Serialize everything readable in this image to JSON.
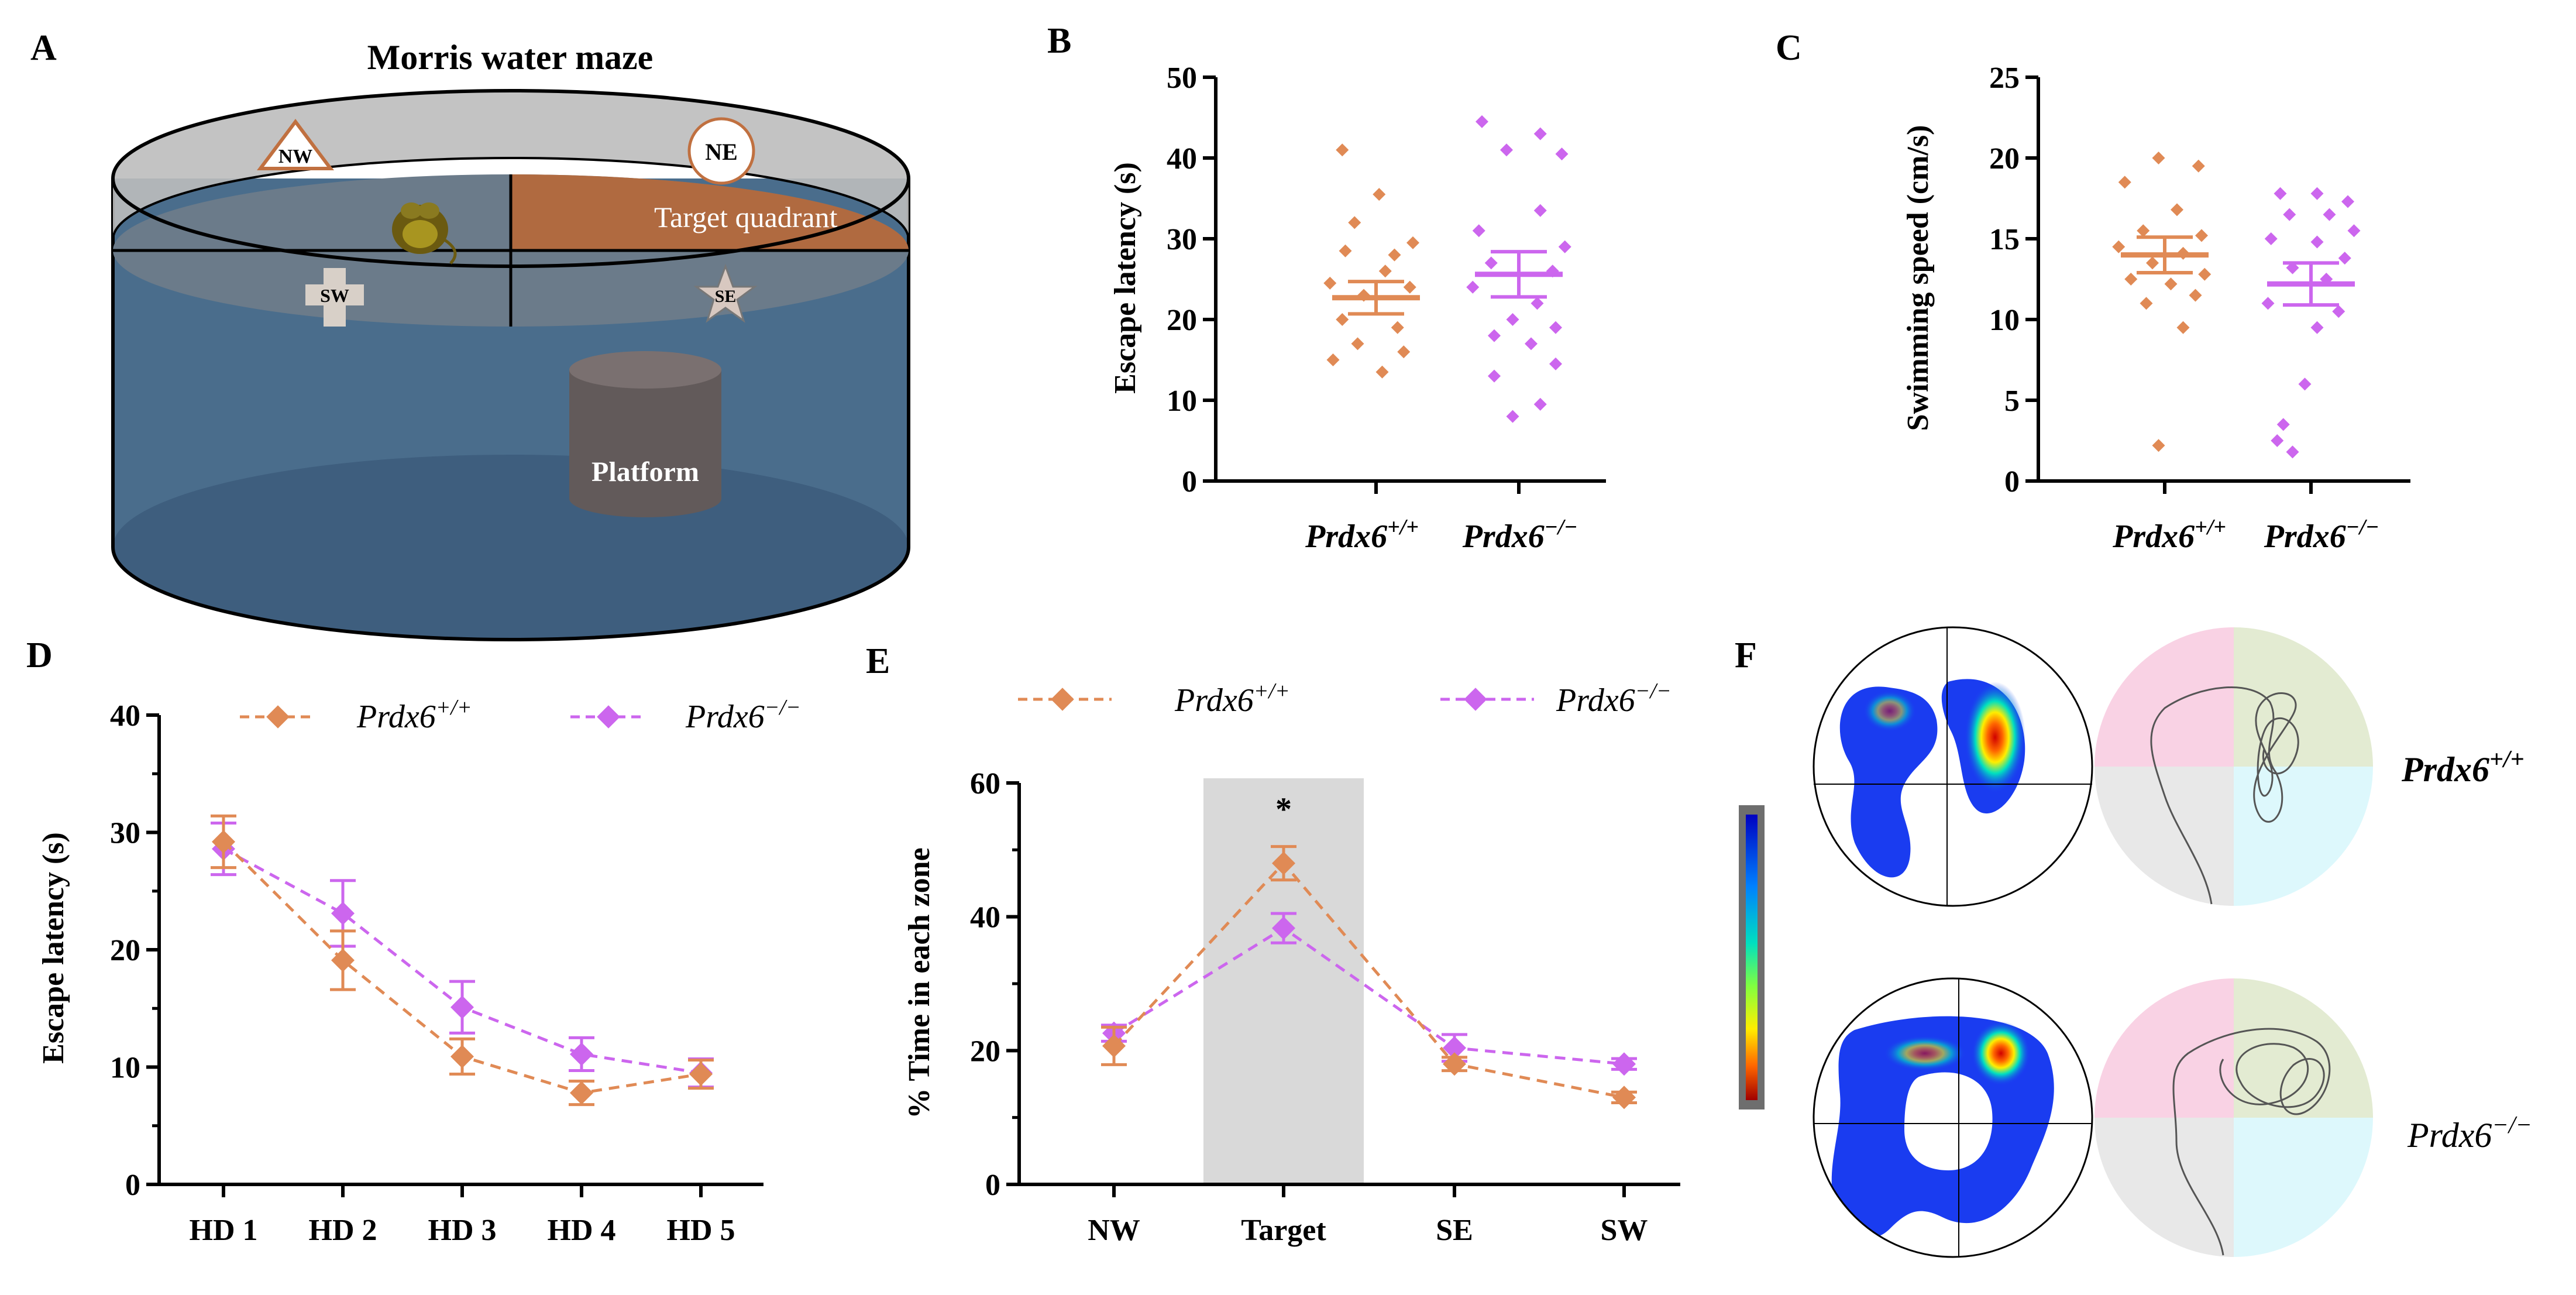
{
  "colors": {
    "wt": "#E08A55",
    "ko": "#CC66EE",
    "axis": "#000000",
    "water": "#4A6D8C",
    "target": "#B06A40",
    "shade": "#D9D9D9"
  },
  "panel_labels": {
    "a": "A",
    "b": "B",
    "c": "C",
    "d": "D",
    "e": "E",
    "f": "F"
  },
  "maze": {
    "title": "Morris water maze",
    "nw": "NW",
    "ne": "NE",
    "sw": "SW",
    "se": "SE",
    "target": "Target quadrant",
    "platform": "Platform"
  },
  "genotypes": {
    "wt": {
      "base": "Prdx6",
      "sup": "+/+"
    },
    "ko": {
      "base": "Prdx6",
      "sup": "−/−"
    }
  },
  "chart_data": [
    {
      "id": "B",
      "type": "scatter",
      "ylabel": "Escape latency (s)",
      "ylim": [
        0,
        50
      ],
      "yticks": [
        "0",
        "10",
        "20",
        "30",
        "40",
        "50"
      ],
      "categories": [
        "Prdx6+/+",
        "Prdx6−/−"
      ],
      "series": [
        {
          "name": "Prdx6+/+",
          "mean": 22.7,
          "sem": 2.0,
          "points": [
            [
              -0.55,
              41
            ],
            [
              0.05,
              35.5
            ],
            [
              -0.35,
              32
            ],
            [
              0.6,
              29.5
            ],
            [
              -0.5,
              28.5
            ],
            [
              0.3,
              28
            ],
            [
              0.15,
              26
            ],
            [
              -0.75,
              24.5
            ],
            [
              0.55,
              24
            ],
            [
              -0.2,
              23
            ],
            [
              -0.55,
              20
            ],
            [
              0.35,
              19
            ],
            [
              -0.3,
              17
            ],
            [
              0.45,
              16
            ],
            [
              -0.7,
              15
            ],
            [
              0.1,
              13.5
            ]
          ]
        },
        {
          "name": "Prdx6−/−",
          "mean": 25.6,
          "sem": 2.8,
          "points": [
            [
              -0.6,
              44.5
            ],
            [
              0.35,
              43
            ],
            [
              -0.2,
              41
            ],
            [
              0.7,
              40.5
            ],
            [
              0.35,
              33.5
            ],
            [
              -0.65,
              31
            ],
            [
              0.75,
              29
            ],
            [
              -0.45,
              27
            ],
            [
              0.55,
              26
            ],
            [
              -0.75,
              24
            ],
            [
              0.3,
              22
            ],
            [
              -0.1,
              20
            ],
            [
              0.6,
              19
            ],
            [
              -0.4,
              18
            ],
            [
              0.2,
              17
            ],
            [
              0.6,
              14.5
            ],
            [
              -0.4,
              13
            ],
            [
              0.35,
              9.5
            ],
            [
              -0.1,
              8
            ]
          ]
        }
      ]
    },
    {
      "id": "C",
      "type": "scatter",
      "ylabel": "Swimming speed (cm/s)",
      "ylim": [
        0,
        25
      ],
      "yticks": [
        "0",
        "5",
        "10",
        "15",
        "20",
        "25"
      ],
      "categories": [
        "Prdx6+/+",
        "Prdx6−/−"
      ],
      "series": [
        {
          "name": "Prdx6+/+",
          "mean": 14.0,
          "sem": 1.1,
          "points": [
            [
              -0.1,
              20
            ],
            [
              0.55,
              19.5
            ],
            [
              -0.65,
              18.5
            ],
            [
              0.2,
              16.8
            ],
            [
              -0.35,
              15.5
            ],
            [
              0.6,
              15.2
            ],
            [
              -0.75,
              14.5
            ],
            [
              0.3,
              14.1
            ],
            [
              -0.2,
              13.5
            ],
            [
              0.65,
              12.8
            ],
            [
              -0.55,
              12.5
            ],
            [
              0.1,
              12.2
            ],
            [
              0.5,
              11.5
            ],
            [
              -0.3,
              11
            ],
            [
              0.3,
              9.5
            ],
            [
              -0.1,
              2.2
            ]
          ]
        },
        {
          "name": "Prdx6−/−",
          "mean": 12.2,
          "sem": 1.3,
          "points": [
            [
              -0.5,
              17.8
            ],
            [
              0.1,
              17.8
            ],
            [
              0.6,
              17.3
            ],
            [
              -0.35,
              16.5
            ],
            [
              0.3,
              16.5
            ],
            [
              0.7,
              15.5
            ],
            [
              -0.65,
              15
            ],
            [
              0.1,
              14.8
            ],
            [
              0.55,
              13.8
            ],
            [
              -0.3,
              13.2
            ],
            [
              0.25,
              12.5
            ],
            [
              -0.7,
              11
            ],
            [
              0.45,
              10.5
            ],
            [
              0.1,
              9.5
            ],
            [
              -0.1,
              6
            ],
            [
              -0.45,
              3.5
            ],
            [
              -0.55,
              2.5
            ],
            [
              -0.3,
              1.8
            ]
          ]
        }
      ]
    },
    {
      "id": "D",
      "type": "line",
      "ylabel": "Escape latency (s)",
      "ylim": [
        0,
        40
      ],
      "yticks": [
        "0",
        "10",
        "20",
        "30",
        "40"
      ],
      "categories": [
        "HD 1",
        "HD 2",
        "HD 3",
        "HD 4",
        "HD 5"
      ],
      "series": [
        {
          "name": "Prdx6+/+",
          "values": [
            29.2,
            19.1,
            10.9,
            7.8,
            9.4
          ],
          "sem": [
            2.2,
            2.5,
            1.5,
            1.0,
            1.2
          ]
        },
        {
          "name": "Prdx6−/−",
          "values": [
            28.6,
            23.1,
            15.1,
            11.1,
            9.5
          ],
          "sem": [
            2.2,
            2.8,
            2.2,
            1.4,
            1.2
          ]
        }
      ]
    },
    {
      "id": "E",
      "type": "line",
      "ylabel": "% Time in each zone",
      "ylim": [
        0,
        60
      ],
      "yticks": [
        "0",
        "20",
        "40",
        "60"
      ],
      "categories": [
        "NW",
        "Target",
        "SE",
        "SW"
      ],
      "shaded_category": "Target",
      "annotation": "*",
      "series": [
        {
          "name": "Prdx6+/+",
          "values": [
            20.7,
            48.0,
            18.0,
            13.0
          ],
          "sem": [
            2.8,
            2.5,
            1.0,
            0.8
          ]
        },
        {
          "name": "Prdx6−/−",
          "values": [
            22.6,
            38.3,
            20.4,
            18.0
          ],
          "sem": [
            1.2,
            2.2,
            2.0,
            0.8
          ]
        }
      ]
    }
  ]
}
